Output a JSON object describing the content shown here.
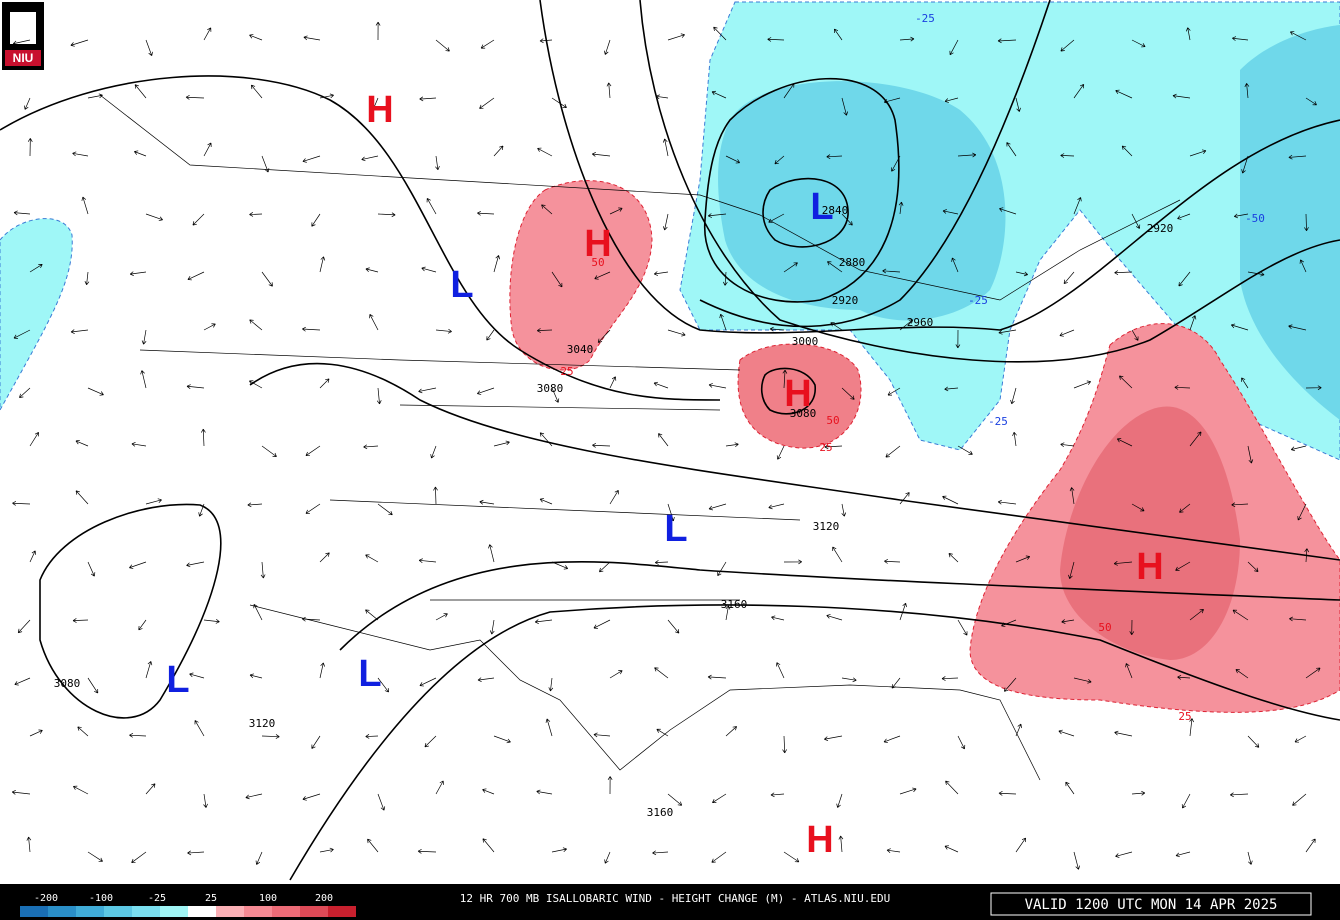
{
  "logo": "NIU",
  "centers": [
    "H",
    "L",
    "H",
    "L",
    "H",
    "L",
    "H",
    "L",
    "L",
    "H"
  ],
  "contour_labels": [
    "3040",
    "3080",
    "25",
    "50",
    "3000",
    "3080",
    "50",
    "25",
    "2880",
    "2920",
    "2960",
    "2840",
    "2920",
    "-50",
    "-25",
    "-25",
    "-25",
    "3120",
    "3160",
    "3080",
    "3120",
    "3160",
    "50",
    "25"
  ],
  "colorbar": {
    "labels": [
      "-200",
      "-100",
      "-25",
      "25",
      "100",
      "200"
    ]
  },
  "footer": {
    "title": "12 HR 700 MB ISALLOBARIC WIND - HEIGHT CHANGE (M) - ATLAS.NIU.EDU",
    "valid": "VALID 1200 UTC MON 14 APR 2025"
  }
}
